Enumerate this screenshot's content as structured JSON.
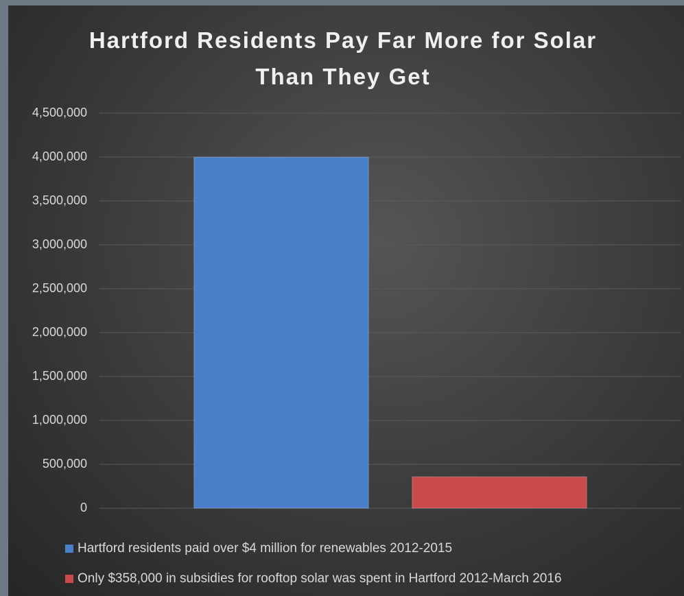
{
  "chart_data": {
    "type": "bar",
    "title": "Hartford Residents Pay Far More for Solar Than They Get",
    "categories": [
      null
    ],
    "series": [
      {
        "name": "Hartford residents paid over $4 million for renewables 2012-2015",
        "color": "#4a7fc8",
        "values": [
          4000000
        ]
      },
      {
        "name": "Only $358,000 in subsidies for rooftop solar was spent in Hartford 2012-March 2016",
        "color": "#c94a4a",
        "values": [
          358000
        ]
      }
    ],
    "ylim": [
      0,
      4500000
    ],
    "yticks": [
      0,
      {
        "value": 500000,
        "label": "500,000"
      },
      {
        "value": 1000000,
        "label": "1,000,000"
      },
      {
        "value": 1500000,
        "label": "1,500,000"
      },
      {
        "value": 2000000,
        "label": "2,000,000"
      },
      {
        "value": 2500000,
        "label": "2,500,000"
      },
      {
        "value": 3000000,
        "label": "3,000,000"
      },
      {
        "value": 3500000,
        "label": "3,500,000"
      },
      {
        "value": 4000000,
        "label": "4,000,000"
      },
      {
        "value": 4500000,
        "label": "4,500,000"
      }
    ],
    "grid": true,
    "legend": "bottom"
  }
}
